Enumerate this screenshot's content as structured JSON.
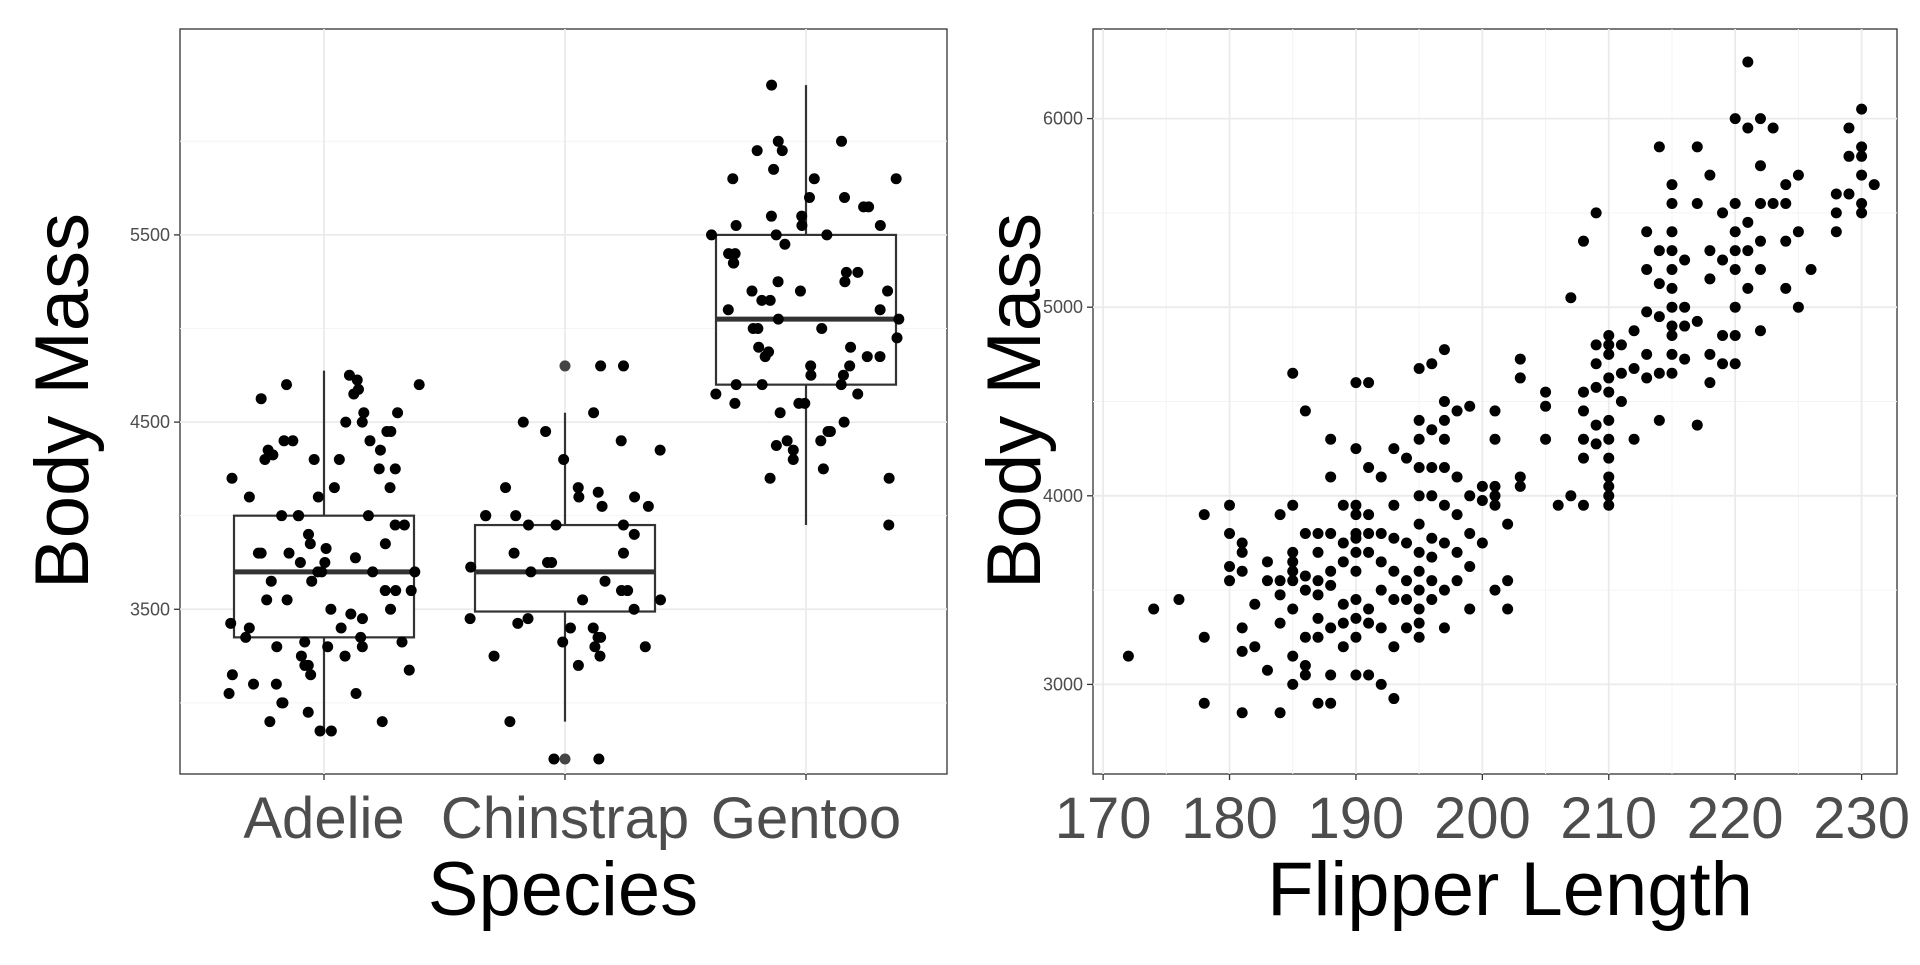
{
  "chart_data": [
    {
      "type": "box+jitter",
      "title": "",
      "xlabel": "Species",
      "ylabel": "Body Mass",
      "categories": [
        "Adelie",
        "Chinstrap",
        "Gentoo"
      ],
      "ylim": [
        2620,
        6600
      ],
      "yticks": [
        3500,
        4500,
        5500
      ],
      "ytick_labels": [
        "3500",
        "4500",
        "5500"
      ],
      "boxes": [
        {
          "name": "Adelie",
          "min": 2850,
          "q1": 3350,
          "median": 3700,
          "q3": 4000,
          "max": 4775
        },
        {
          "name": "Chinstrap",
          "min": 2900,
          "q1": 3488,
          "median": 3700,
          "q3": 3950,
          "max": 4550,
          "outliers": [
            4800,
            2700
          ]
        },
        {
          "name": "Gentoo",
          "min": 3950,
          "q1": 4700,
          "median": 5050,
          "q3": 5500,
          "max": 6300
        }
      ],
      "points": [
        {
          "species": "Adelie",
          "values": [
            4650,
            4700,
            4750,
            4700,
            4675,
            4725,
            4625,
            4550,
            4550,
            4450,
            4400,
            4400,
            4350,
            4300,
            4300,
            4325,
            4350,
            4250,
            4250,
            4150,
            4100,
            4100,
            4000,
            4000,
            4000,
            4000,
            3950,
            3950,
            3900,
            3850,
            3850,
            3800,
            3800,
            3800,
            3750,
            3750,
            3700,
            3700,
            3700,
            3650,
            3650,
            3600,
            3600,
            3550,
            3500,
            3500,
            3450,
            3400,
            3400,
            3350,
            3350,
            3325,
            3300,
            3300,
            3250,
            3200,
            3200,
            3175,
            3150,
            3150,
            3100,
            3100,
            3050,
            3050,
            3000,
            3000,
            2950,
            2900,
            2900,
            2850,
            2850,
            4450,
            4500,
            4500,
            4200,
            4150,
            4300,
            3825,
            3775,
            4400,
            3700,
            3600,
            3550,
            3300,
            3325,
            3250,
            3425,
            3475
          ]
        },
        {
          "species": "Chinstrap",
          "values": [
            4550,
            4450,
            4800,
            4800,
            4500,
            4400,
            4350,
            4300,
            4150,
            4150,
            4125,
            4100,
            4100,
            4050,
            4000,
            4050,
            4000,
            4000,
            3950,
            3950,
            3950,
            3900,
            3800,
            3800,
            3750,
            3750,
            3725,
            3700,
            3650,
            3600,
            3600,
            3550,
            3550,
            3500,
            3450,
            3450,
            3425,
            3400,
            3400,
            3350,
            3350,
            3325,
            3300,
            3300,
            3250,
            3250,
            3200,
            2900,
            2700,
            2700
          ]
        },
        {
          "species": "Gentoo",
          "values": [
            6300,
            6000,
            6000,
            5950,
            5950,
            5850,
            5800,
            5800,
            5800,
            5700,
            5700,
            5650,
            5650,
            5600,
            5600,
            5550,
            5550,
            5550,
            5500,
            5500,
            5500,
            5450,
            5400,
            5400,
            5350,
            5350,
            5300,
            5300,
            5250,
            5250,
            5200,
            5200,
            5200,
            5150,
            5100,
            5100,
            5050,
            5050,
            5000,
            5000,
            5000,
            4950,
            4900,
            4900,
            4875,
            4850,
            4850,
            4800,
            4800,
            4750,
            4750,
            4700,
            4700,
            4700,
            4650,
            4650,
            4600,
            4600,
            4600,
            4550,
            4500,
            4450,
            4400,
            4375,
            4350,
            4300,
            4250,
            4200,
            4200,
            3950,
            4450,
            4400,
            4850,
            5150
          ]
        }
      ]
    },
    {
      "type": "scatter",
      "title": "",
      "xlabel": "Flipper Length",
      "ylabel": "Body Mass",
      "xlim": [
        169.2,
        232.8
      ],
      "ylim": [
        2525,
        6475
      ],
      "xticks": [
        170,
        180,
        190,
        200,
        210,
        220,
        230
      ],
      "xtick_labels": [
        "170",
        "180",
        "190",
        "200",
        "210",
        "220",
        "230"
      ],
      "yticks": [
        3000,
        4000,
        5000,
        6000
      ],
      "ytick_labels": [
        "3000",
        "4000",
        "5000",
        "6000"
      ],
      "points": [
        [
          172,
          3150
        ],
        [
          174,
          3400
        ],
        [
          176,
          3450
        ],
        [
          178,
          3900
        ],
        [
          178,
          3250
        ],
        [
          178,
          2900
        ],
        [
          180,
          3950
        ],
        [
          180,
          3800
        ],
        [
          180,
          3625
        ],
        [
          180,
          3550
        ],
        [
          181,
          3750
        ],
        [
          181,
          3700
        ],
        [
          181,
          3600
        ],
        [
          181,
          3300
        ],
        [
          181,
          3175
        ],
        [
          181,
          2850
        ],
        [
          182,
          3200
        ],
        [
          182,
          3425
        ],
        [
          183,
          3650
        ],
        [
          183,
          3550
        ],
        [
          183,
          3075
        ],
        [
          184,
          3550
        ],
        [
          184,
          3900
        ],
        [
          184,
          3475
        ],
        [
          184,
          3325
        ],
        [
          184,
          2850
        ],
        [
          185,
          4650
        ],
        [
          185,
          3950
        ],
        [
          185,
          3700
        ],
        [
          185,
          3650
        ],
        [
          185,
          3600
        ],
        [
          185,
          3550
        ],
        [
          185,
          3400
        ],
        [
          185,
          3150
        ],
        [
          185,
          3000
        ],
        [
          186,
          4450
        ],
        [
          186,
          3800
        ],
        [
          186,
          3575
        ],
        [
          186,
          3500
        ],
        [
          186,
          3250
        ],
        [
          186,
          3100
        ],
        [
          186,
          3050
        ],
        [
          187,
          3800
        ],
        [
          187,
          3700
        ],
        [
          187,
          3550
        ],
        [
          187,
          3475
        ],
        [
          187,
          3350
        ],
        [
          187,
          3250
        ],
        [
          187,
          2900
        ],
        [
          188,
          4300
        ],
        [
          188,
          4100
        ],
        [
          188,
          3800
        ],
        [
          188,
          3600
        ],
        [
          188,
          3525
        ],
        [
          188,
          3300
        ],
        [
          188,
          3050
        ],
        [
          188,
          2900
        ],
        [
          189,
          3950
        ],
        [
          189,
          3750
        ],
        [
          189,
          3650
        ],
        [
          189,
          3425
        ],
        [
          189,
          3325
        ],
        [
          189,
          3200
        ],
        [
          190,
          4600
        ],
        [
          190,
          4250
        ],
        [
          190,
          3950
        ],
        [
          190,
          3900
        ],
        [
          190,
          3800
        ],
        [
          190,
          3775
        ],
        [
          190,
          3700
        ],
        [
          190,
          3600
        ],
        [
          190,
          3450
        ],
        [
          190,
          3350
        ],
        [
          190,
          3250
        ],
        [
          190,
          3050
        ],
        [
          191,
          4600
        ],
        [
          191,
          4150
        ],
        [
          191,
          3900
        ],
        [
          191,
          3800
        ],
        [
          191,
          3700
        ],
        [
          191,
          3400
        ],
        [
          191,
          3325
        ],
        [
          191,
          3050
        ],
        [
          192,
          4100
        ],
        [
          192,
          3800
        ],
        [
          192,
          3650
        ],
        [
          192,
          3500
        ],
        [
          192,
          3300
        ],
        [
          192,
          3000
        ],
        [
          193,
          4250
        ],
        [
          193,
          3950
        ],
        [
          193,
          3775
        ],
        [
          193,
          3600
        ],
        [
          193,
          3450
        ],
        [
          193,
          3200
        ],
        [
          193,
          2925
        ],
        [
          194,
          4200
        ],
        [
          194,
          3750
        ],
        [
          194,
          3550
        ],
        [
          194,
          3450
        ],
        [
          194,
          3300
        ],
        [
          195,
          4675
        ],
        [
          195,
          4400
        ],
        [
          195,
          4300
        ],
        [
          195,
          4150
        ],
        [
          195,
          4000
        ],
        [
          195,
          3850
        ],
        [
          195,
          3700
        ],
        [
          195,
          3600
        ],
        [
          195,
          3500
        ],
        [
          195,
          3400
        ],
        [
          195,
          3325
        ],
        [
          195,
          3250
        ],
        [
          196,
          4700
        ],
        [
          196,
          4350
        ],
        [
          196,
          4150
        ],
        [
          196,
          4000
        ],
        [
          196,
          3775
        ],
        [
          196,
          3675
        ],
        [
          196,
          3550
        ],
        [
          196,
          3450
        ],
        [
          197,
          4775
        ],
        [
          197,
          4500
        ],
        [
          197,
          4400
        ],
        [
          197,
          4300
        ],
        [
          197,
          4150
        ],
        [
          197,
          3950
        ],
        [
          197,
          3750
        ],
        [
          197,
          3500
        ],
        [
          197,
          3300
        ],
        [
          198,
          4450
        ],
        [
          198,
          4100
        ],
        [
          198,
          3900
        ],
        [
          198,
          3700
        ],
        [
          198,
          3550
        ],
        [
          199,
          4475
        ],
        [
          199,
          4000
        ],
        [
          199,
          3800
        ],
        [
          199,
          3625
        ],
        [
          199,
          3400
        ],
        [
          200,
          4050
        ],
        [
          200,
          3975
        ],
        [
          200,
          3750
        ],
        [
          201,
          4450
        ],
        [
          201,
          4300
        ],
        [
          201,
          4050
        ],
        [
          201,
          4000
        ],
        [
          201,
          3950
        ],
        [
          201,
          3500
        ],
        [
          202,
          3850
        ],
        [
          202,
          3550
        ],
        [
          202,
          3400
        ],
        [
          203,
          4725
        ],
        [
          203,
          4625
        ],
        [
          203,
          4100
        ],
        [
          203,
          4050
        ],
        [
          205,
          4550
        ],
        [
          205,
          4475
        ],
        [
          205,
          4300
        ],
        [
          206,
          3950
        ],
        [
          207,
          5050
        ],
        [
          207,
          4000
        ],
        [
          208,
          5350
        ],
        [
          208,
          4550
        ],
        [
          208,
          4450
        ],
        [
          208,
          4300
        ],
        [
          208,
          4200
        ],
        [
          208,
          3950
        ],
        [
          209,
          5500
        ],
        [
          209,
          4800
        ],
        [
          209,
          4700
        ],
        [
          209,
          4575
        ],
        [
          209,
          4375
        ],
        [
          209,
          4275
        ],
        [
          210,
          4850
        ],
        [
          210,
          4800
        ],
        [
          210,
          4750
        ],
        [
          210,
          4625
        ],
        [
          210,
          4550
        ],
        [
          210,
          4400
        ],
        [
          210,
          4300
        ],
        [
          210,
          4200
        ],
        [
          210,
          4100
        ],
        [
          210,
          4050
        ],
        [
          210,
          4000
        ],
        [
          210,
          3950
        ],
        [
          211,
          4800
        ],
        [
          211,
          4650
        ],
        [
          211,
          4500
        ],
        [
          212,
          4875
        ],
        [
          212,
          4675
        ],
        [
          212,
          4300
        ],
        [
          213,
          5400
        ],
        [
          213,
          5200
        ],
        [
          213,
          4975
        ],
        [
          213,
          4750
        ],
        [
          213,
          4625
        ],
        [
          214,
          5850
        ],
        [
          214,
          5300
        ],
        [
          214,
          5125
        ],
        [
          214,
          4950
        ],
        [
          214,
          4650
        ],
        [
          214,
          4400
        ],
        [
          215,
          5650
        ],
        [
          215,
          5550
        ],
        [
          215,
          5400
        ],
        [
          215,
          5300
        ],
        [
          215,
          5200
        ],
        [
          215,
          5100
        ],
        [
          215,
          5000
        ],
        [
          215,
          4900
        ],
        [
          215,
          4850
        ],
        [
          215,
          4750
        ],
        [
          215,
          4650
        ],
        [
          216,
          5250
        ],
        [
          216,
          5000
        ],
        [
          216,
          4900
        ],
        [
          216,
          4725
        ],
        [
          217,
          5850
        ],
        [
          217,
          5550
        ],
        [
          217,
          4925
        ],
        [
          217,
          4375
        ],
        [
          218,
          5700
        ],
        [
          218,
          5300
        ],
        [
          218,
          5150
        ],
        [
          218,
          4750
        ],
        [
          218,
          4600
        ],
        [
          219,
          5500
        ],
        [
          219,
          5250
        ],
        [
          219,
          4850
        ],
        [
          219,
          4700
        ],
        [
          220,
          6000
        ],
        [
          220,
          5550
        ],
        [
          220,
          5400
        ],
        [
          220,
          5300
        ],
        [
          220,
          5200
        ],
        [
          220,
          5000
        ],
        [
          220,
          4850
        ],
        [
          220,
          4700
        ],
        [
          221,
          6300
        ],
        [
          221,
          5950
        ],
        [
          221,
          5450
        ],
        [
          221,
          5300
        ],
        [
          221,
          5100
        ],
        [
          222,
          5750
        ],
        [
          222,
          5550
        ],
        [
          222,
          5350
        ],
        [
          222,
          5200
        ],
        [
          222,
          4875
        ],
        [
          222,
          6000
        ],
        [
          223,
          5950
        ],
        [
          223,
          5550
        ],
        [
          224,
          5650
        ],
        [
          224,
          5550
        ],
        [
          224,
          5350
        ],
        [
          224,
          5100
        ],
        [
          225,
          5700
        ],
        [
          225,
          5400
        ],
        [
          225,
          5000
        ],
        [
          226,
          5200
        ],
        [
          228,
          5600
        ],
        [
          228,
          5500
        ],
        [
          228,
          5400
        ],
        [
          229,
          5950
        ],
        [
          229,
          5800
        ],
        [
          229,
          5600
        ],
        [
          230,
          6050
        ],
        [
          230,
          5850
        ],
        [
          230,
          5800
        ],
        [
          230,
          5700
        ],
        [
          230,
          5550
        ],
        [
          230,
          5500
        ],
        [
          231,
          5650
        ]
      ]
    }
  ]
}
